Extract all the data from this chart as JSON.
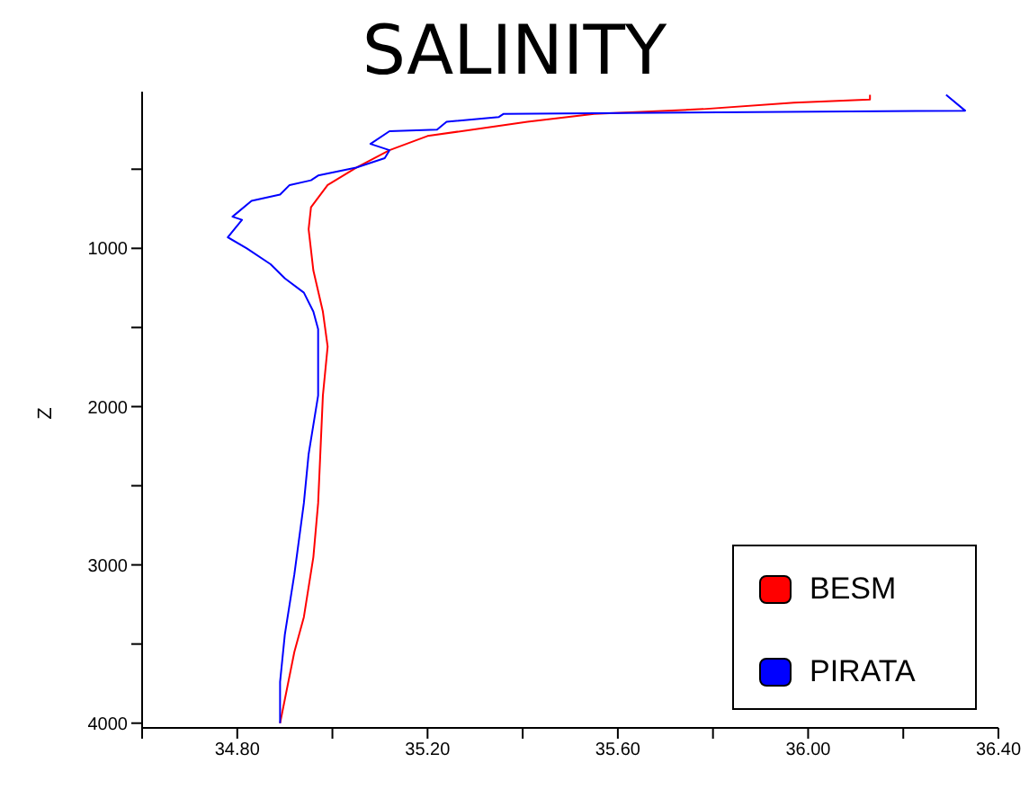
{
  "chart_data": {
    "type": "line",
    "title": "SALINITY",
    "ylabel": "Z",
    "xlim": [
      34.6,
      36.4
    ],
    "xticks": [
      {
        "value": 34.6,
        "label": null
      },
      {
        "value": 34.8,
        "label": "34.80"
      },
      {
        "value": 35.0,
        "label": null
      },
      {
        "value": 35.2,
        "label": "35.20"
      },
      {
        "value": 35.4,
        "label": null
      },
      {
        "value": 35.6,
        "label": "35.60"
      },
      {
        "value": 35.8,
        "label": null
      },
      {
        "value": 36.0,
        "label": "36.00"
      },
      {
        "value": 36.2,
        "label": null
      },
      {
        "value": 36.4,
        "label": "36.40"
      }
    ],
    "ylim": [
      4030,
      10
    ],
    "yticks": [
      {
        "value": 500,
        "label": null
      },
      1000,
      {
        "value": 1500,
        "label": null
      },
      2000,
      {
        "value": 2500,
        "label": null
      },
      3000,
      {
        "value": 3500,
        "label": null
      },
      4000
    ],
    "legend": "bottom right",
    "marker": "none",
    "line_style": "solid",
    "series": [
      {
        "name": "BESM",
        "color": "#ff0000",
        "x": [
          36.13,
          36.13,
          35.97,
          35.78,
          35.55,
          35.41,
          35.2,
          35.12,
          35.05,
          34.99,
          34.955,
          34.95,
          34.96,
          34.98,
          34.99,
          34.98,
          34.97,
          34.96,
          34.94,
          34.92,
          34.89
        ],
        "values": [
          30,
          60,
          80,
          120,
          150,
          200,
          290,
          380,
          490,
          600,
          740,
          880,
          1140,
          1400,
          1620,
          1930,
          2610,
          2950,
          3330,
          3550,
          4000
        ]
      },
      {
        "name": "PIRATA",
        "color": "#0000ff",
        "x": [
          36.29,
          36.33,
          35.36,
          35.35,
          35.24,
          35.22,
          35.12,
          35.08,
          35.12,
          35.11,
          35.05,
          34.97,
          34.955,
          34.91,
          34.89,
          34.83,
          34.79,
          34.81,
          34.78,
          34.82,
          34.87,
          34.9,
          34.94,
          34.96,
          34.97,
          34.97,
          34.97,
          34.95,
          34.94,
          34.92,
          34.9,
          34.89,
          34.89
        ],
        "values": [
          30,
          130,
          150,
          170,
          200,
          250,
          260,
          340,
          380,
          430,
          490,
          540,
          570,
          600,
          660,
          700,
          800,
          820,
          930,
          1000,
          1100,
          1190,
          1280,
          1400,
          1510,
          1670,
          1930,
          2300,
          2610,
          3060,
          3440,
          3740,
          4000
        ]
      }
    ]
  }
}
